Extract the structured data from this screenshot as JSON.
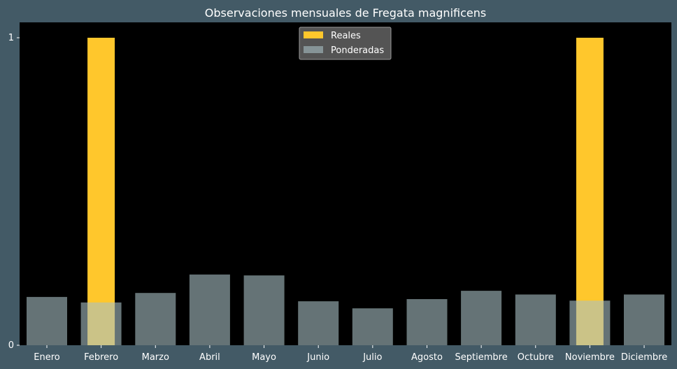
{
  "chart_data": {
    "type": "bar",
    "title": "Observaciones mensuales de Fregata magnificens",
    "xlabel": "",
    "ylabel": "",
    "categories": [
      "Enero",
      "Febrero",
      "Marzo",
      "Abril",
      "Mayo",
      "Junio",
      "Julio",
      "Agosto",
      "Septiembre",
      "Octubre",
      "Noviembre",
      "Diciembre"
    ],
    "ylim": [
      0,
      1.05
    ],
    "yticks": [
      "0",
      "1"
    ],
    "grid": false,
    "legend_position": "top-center",
    "series": [
      {
        "name": "Reales",
        "color": "#ffc72c",
        "values": [
          0,
          1,
          0,
          0,
          0,
          0,
          0,
          0,
          0,
          0,
          1,
          0
        ]
      },
      {
        "name": "Ponderadas",
        "color": "#a8bfc4",
        "values": [
          0.157,
          0.139,
          0.17,
          0.23,
          0.227,
          0.143,
          0.12,
          0.15,
          0.177,
          0.165,
          0.145,
          0.165
        ]
      }
    ],
    "colors": {
      "background": "#435a66",
      "plot_area": "#000000",
      "text": "#ffffff",
      "legend_box": "#595959"
    }
  }
}
